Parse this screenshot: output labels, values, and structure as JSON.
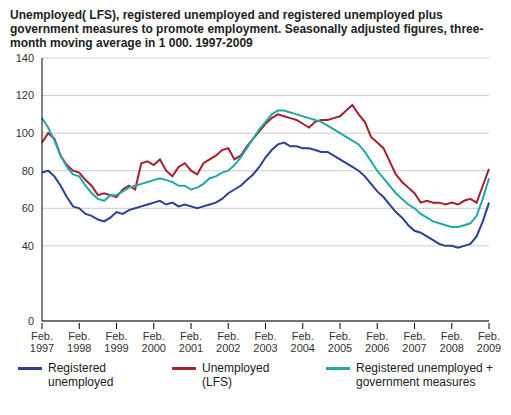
{
  "chart_data": {
    "type": "line",
    "title": "Unemployed( LFS), registered unemployed and registered unemployed plus government measures to promote employment. Seasonally adjusted figures, three-month moving average in 1 000. 1997-2009",
    "categories": [
      "Feb. 1997",
      null,
      null,
      null,
      null,
      null,
      "Feb. 1998",
      null,
      null,
      null,
      null,
      null,
      "Feb. 1999",
      null,
      null,
      null,
      null,
      null,
      "Feb. 2000",
      null,
      null,
      null,
      null,
      null,
      "Feb. 2001",
      null,
      null,
      null,
      null,
      null,
      "Feb. 2002",
      null,
      null,
      null,
      null,
      null,
      "Feb. 2003",
      null,
      null,
      null,
      null,
      null,
      "Feb. 2004",
      null,
      null,
      null,
      null,
      null,
      "Feb. 2005",
      null,
      null,
      null,
      null,
      null,
      "Feb. 2006",
      null,
      null,
      null,
      null,
      null,
      "Feb. 2007",
      null,
      null,
      null,
      null,
      null,
      "Feb. 2008",
      null,
      null,
      null,
      null,
      null,
      "Feb. 2009"
    ],
    "series": [
      {
        "name": "Registered unemployed",
        "color": "#2b3f94",
        "values": [
          79,
          80,
          77,
          72,
          66,
          61,
          60,
          57,
          56,
          54,
          53,
          55,
          58,
          57,
          59,
          60,
          61,
          62,
          63,
          64,
          62,
          63,
          61,
          62,
          61,
          60,
          61,
          62,
          63,
          65,
          68,
          70,
          72,
          75,
          78,
          82,
          87,
          91,
          94,
          95,
          93,
          93,
          92,
          92,
          91,
          90,
          90,
          88,
          86,
          84,
          82,
          80,
          77,
          73,
          69,
          66,
          62,
          58,
          55,
          51,
          48,
          47,
          45,
          43,
          41,
          40,
          40,
          39,
          40,
          41,
          45,
          53,
          63
        ]
      },
      {
        "name": "Unemployed (LFS)",
        "color": "#a3202e",
        "values": [
          95,
          100,
          97,
          88,
          83,
          80,
          79,
          75,
          72,
          67,
          68,
          67,
          66,
          70,
          72,
          70,
          84,
          85,
          83,
          86,
          80,
          77,
          82,
          84,
          80,
          78,
          84,
          86,
          88,
          91,
          92,
          86,
          88,
          93,
          97,
          101,
          105,
          108,
          110,
          109,
          108,
          107,
          105,
          103,
          106,
          107,
          107,
          108,
          109,
          112,
          115,
          110,
          106,
          98,
          95,
          92,
          85,
          78,
          74,
          71,
          68,
          63,
          64,
          63,
          63,
          62,
          63,
          62,
          64,
          65,
          63,
          72,
          81
        ]
      },
      {
        "name": "Registered unemployed + government measures",
        "color": "#22a9a6",
        "values": [
          108,
          103,
          96,
          88,
          82,
          78,
          77,
          72,
          68,
          65,
          64,
          67,
          67,
          69,
          71,
          72,
          73,
          74,
          75,
          76,
          75,
          74,
          72,
          72,
          70,
          71,
          73,
          76,
          77,
          79,
          80,
          83,
          87,
          92,
          97,
          102,
          106,
          110,
          112,
          112,
          111,
          110,
          109,
          108,
          107,
          106,
          104,
          102,
          100,
          98,
          96,
          94,
          90,
          85,
          80,
          76,
          72,
          68,
          65,
          62,
          60,
          57,
          55,
          53,
          52,
          51,
          50,
          50,
          51,
          52,
          56,
          65,
          76
        ]
      }
    ],
    "ylim": [
      0,
      140
    ],
    "yticks": [
      0,
      40,
      60,
      80,
      100,
      120,
      140
    ],
    "grid": true
  }
}
